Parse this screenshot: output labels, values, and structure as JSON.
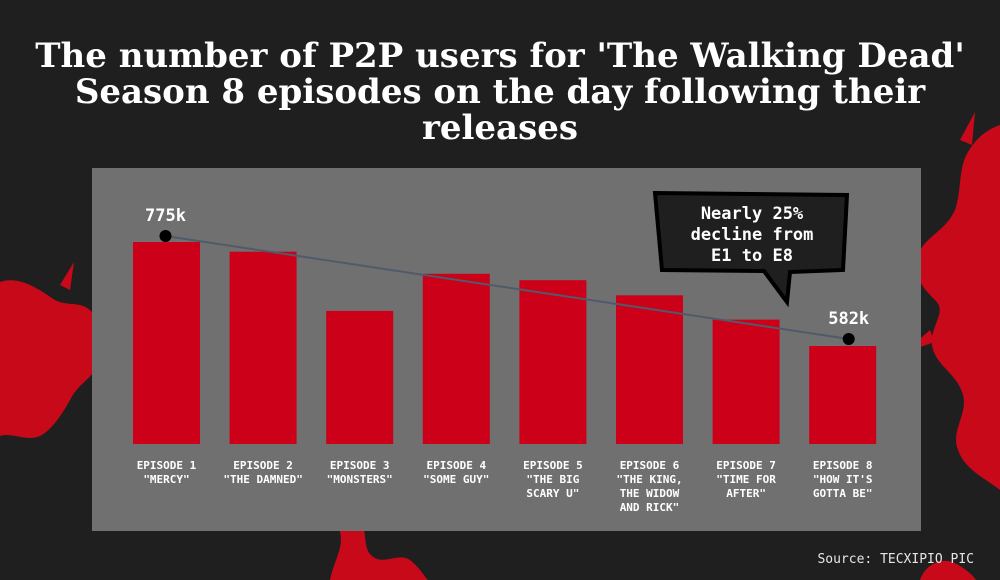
{
  "title_lines": [
    "The number of P2P users for 'The Walking Dead'",
    "Season 8 episodes on the day following their",
    "releases"
  ],
  "source": "Source: TECXIPIO PIC",
  "callout": "Nearly 25%\ndecline from\nE1 to E8",
  "colors": {
    "background": "#1f1f1f",
    "panel": "#707070",
    "bar": "#cc0019",
    "trend": "#505a6b",
    "splatter": "#c8091a"
  },
  "chart_data": {
    "type": "bar",
    "title": "The number of P2P users for 'The Walking Dead' Season 8 episodes on the day following their releases",
    "categories": [
      [
        "EPISODE 1",
        "\"MERCY\""
      ],
      [
        "EPISODE 2",
        "\"THE DAMNED\""
      ],
      [
        "EPISODE 3",
        "\"MONSTERS\""
      ],
      [
        "EPISODE 4",
        "\"SOME GUY\""
      ],
      [
        "EPISODE 5",
        "\"THE BIG",
        "SCARY U\""
      ],
      [
        "EPISODE 6",
        "\"THE KING,",
        "THE WIDOW",
        "AND RICK\""
      ],
      [
        "EPISODE 7",
        "\"TIME FOR",
        "AFTER\""
      ],
      [
        "EPISODE 8",
        "\"HOW IT'S",
        "GOTTA BE\""
      ]
    ],
    "values": [
      775,
      757,
      647,
      716,
      704,
      676,
      631,
      582
    ],
    "unit": "k",
    "ylim": [
      400,
      800
    ],
    "data_labels": [
      {
        "index": 0,
        "text": "775k"
      },
      {
        "index": 7,
        "text": "582k"
      }
    ],
    "trend_line": {
      "from": 0,
      "to": 7
    },
    "grid": false,
    "legend": "none"
  }
}
